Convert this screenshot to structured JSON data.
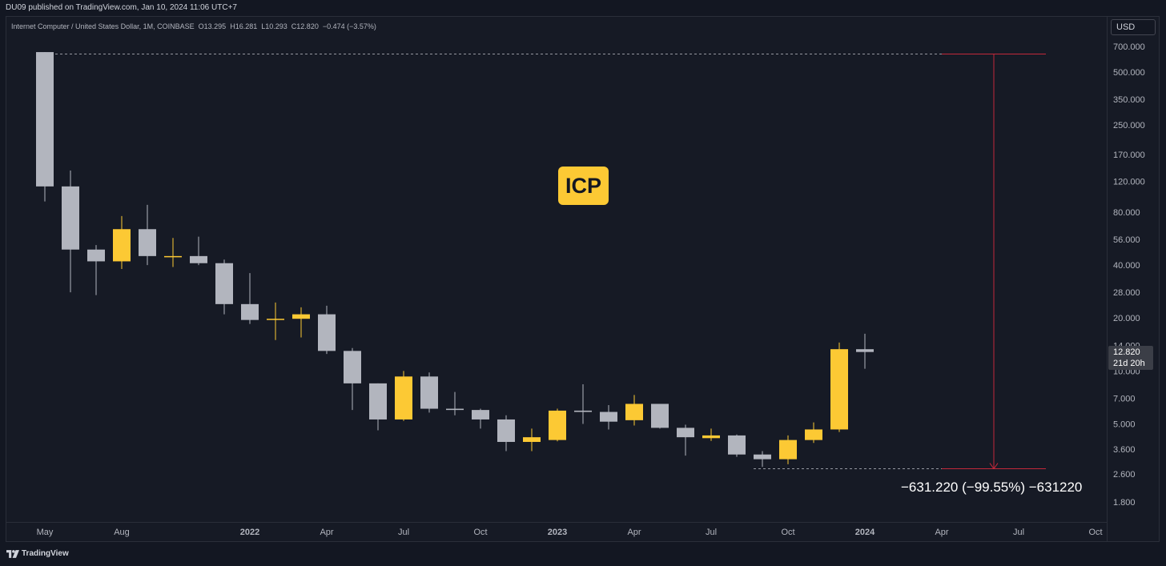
{
  "publisher": "DU09 published on TradingView.com, Jan 10, 2024 11:06 UTC+7",
  "legend": {
    "symbol": "Internet Computer / United States Dollar, 1M, COINBASE",
    "open_label": "O",
    "open": "13.295",
    "high_label": "H",
    "high": "16.281",
    "low_label": "L",
    "low": "10.293",
    "close_label": "C",
    "close": "12.820",
    "change": "−0.474 (−3.57%)"
  },
  "currency": "USD",
  "price_label": {
    "price": "12.820",
    "countdown": "21d 20h"
  },
  "overlay_label": "ICP",
  "measure_label": "−631.220 (−99.55%) −631220",
  "footer_brand": "TradingView",
  "colors": {
    "background": "#131722",
    "pane": "#161a25",
    "up": "#fcc934",
    "down": "#b2b5be",
    "measure_line": "#c2283a"
  },
  "chart_data": {
    "type": "candlestick",
    "y_scale": "log",
    "ylim": [
      1.5,
      850
    ],
    "y_ticks": [
      "700.000",
      "500.000",
      "350.000",
      "250.000",
      "170.000",
      "120.000",
      "80.000",
      "56.000",
      "40.000",
      "28.000",
      "20.000",
      "14.000",
      "10.000",
      "7.000",
      "5.000",
      "3.600",
      "2.600",
      "1.800"
    ],
    "x_labels": [
      {
        "label": "May",
        "index": 0
      },
      {
        "label": "Aug",
        "index": 3
      },
      {
        "label": "2022",
        "index": 8
      },
      {
        "label": "Apr",
        "index": 11
      },
      {
        "label": "Jul",
        "index": 14
      },
      {
        "label": "Oct",
        "index": 17
      },
      {
        "label": "2023",
        "index": 20
      },
      {
        "label": "Apr",
        "index": 23
      },
      {
        "label": "Jul",
        "index": 26
      },
      {
        "label": "Oct",
        "index": 29
      },
      {
        "label": "2024",
        "index": 32
      },
      {
        "label": "Apr",
        "index": 35
      },
      {
        "label": "Jul",
        "index": 38
      },
      {
        "label": "Oct",
        "index": 41
      }
    ],
    "candles": [
      {
        "month": "2021-05",
        "o": 650,
        "h": 650,
        "l": 92,
        "c": 112
      },
      {
        "month": "2021-06",
        "o": 112,
        "h": 138,
        "l": 28,
        "c": 49
      },
      {
        "month": "2021-07",
        "o": 49,
        "h": 52,
        "l": 27,
        "c": 42
      },
      {
        "month": "2021-08",
        "o": 42,
        "h": 76,
        "l": 38,
        "c": 64
      },
      {
        "month": "2021-09",
        "o": 64,
        "h": 88,
        "l": 40,
        "c": 45
      },
      {
        "month": "2021-10",
        "o": 45,
        "h": 57,
        "l": 39,
        "c": 45
      },
      {
        "month": "2021-11",
        "o": 45,
        "h": 58,
        "l": 40,
        "c": 41
      },
      {
        "month": "2021-12",
        "o": 41,
        "h": 43,
        "l": 21,
        "c": 24
      },
      {
        "month": "2022-01",
        "o": 24,
        "h": 36,
        "l": 18.5,
        "c": 19.5
      },
      {
        "month": "2022-02",
        "o": 19.5,
        "h": 24.5,
        "l": 15,
        "c": 19.8
      },
      {
        "month": "2022-03",
        "o": 19.8,
        "h": 23,
        "l": 15.5,
        "c": 21
      },
      {
        "month": "2022-04",
        "o": 21,
        "h": 23.5,
        "l": 12.5,
        "c": 13
      },
      {
        "month": "2022-05",
        "o": 13,
        "h": 13.5,
        "l": 6,
        "c": 8.5
      },
      {
        "month": "2022-06",
        "o": 8.5,
        "h": 8.5,
        "l": 4.6,
        "c": 5.3
      },
      {
        "month": "2022-07",
        "o": 5.3,
        "h": 10,
        "l": 5.2,
        "c": 9.3
      },
      {
        "month": "2022-08",
        "o": 9.3,
        "h": 9.8,
        "l": 5.8,
        "c": 6.1
      },
      {
        "month": "2022-09",
        "o": 6.1,
        "h": 7.6,
        "l": 5.6,
        "c": 6.0
      },
      {
        "month": "2022-10",
        "o": 6.0,
        "h": 6.1,
        "l": 4.7,
        "c": 5.3
      },
      {
        "month": "2022-11",
        "o": 5.3,
        "h": 5.6,
        "l": 3.5,
        "c": 3.95
      },
      {
        "month": "2022-12",
        "o": 3.95,
        "h": 4.7,
        "l": 3.5,
        "c": 4.2
      },
      {
        "month": "2023-01",
        "o": 4.05,
        "h": 6.1,
        "l": 3.98,
        "c": 5.95
      },
      {
        "month": "2023-02",
        "o": 5.95,
        "h": 8.4,
        "l": 5.0,
        "c": 5.85
      },
      {
        "month": "2023-03",
        "o": 5.85,
        "h": 6.4,
        "l": 4.65,
        "c": 5.15
      },
      {
        "month": "2023-04",
        "o": 5.25,
        "h": 7.3,
        "l": 4.9,
        "c": 6.5
      },
      {
        "month": "2023-05",
        "o": 6.5,
        "h": 6.5,
        "l": 4.7,
        "c": 4.75
      },
      {
        "month": "2023-06",
        "o": 4.75,
        "h": 4.95,
        "l": 3.3,
        "c": 4.2
      },
      {
        "month": "2023-07",
        "o": 4.15,
        "h": 4.7,
        "l": 4.0,
        "c": 4.3
      },
      {
        "month": "2023-08",
        "o": 4.3,
        "h": 4.35,
        "l": 3.25,
        "c": 3.35
      },
      {
        "month": "2023-09",
        "o": 3.35,
        "h": 3.5,
        "l": 2.85,
        "c": 3.15
      },
      {
        "month": "2023-10",
        "o": 3.15,
        "h": 4.3,
        "l": 2.95,
        "c": 4.05
      },
      {
        "month": "2023-11",
        "o": 4.05,
        "h": 5.1,
        "l": 3.9,
        "c": 4.65
      },
      {
        "month": "2023-12",
        "o": 4.65,
        "h": 14.5,
        "l": 4.5,
        "c": 13.3
      },
      {
        "month": "2024-01",
        "o": 13.295,
        "h": 16.281,
        "l": 10.293,
        "c": 12.82
      }
    ],
    "measure": {
      "from_price": 634.0,
      "to_price": 2.78,
      "change": "−631.220",
      "percent": "−99.55%"
    }
  }
}
